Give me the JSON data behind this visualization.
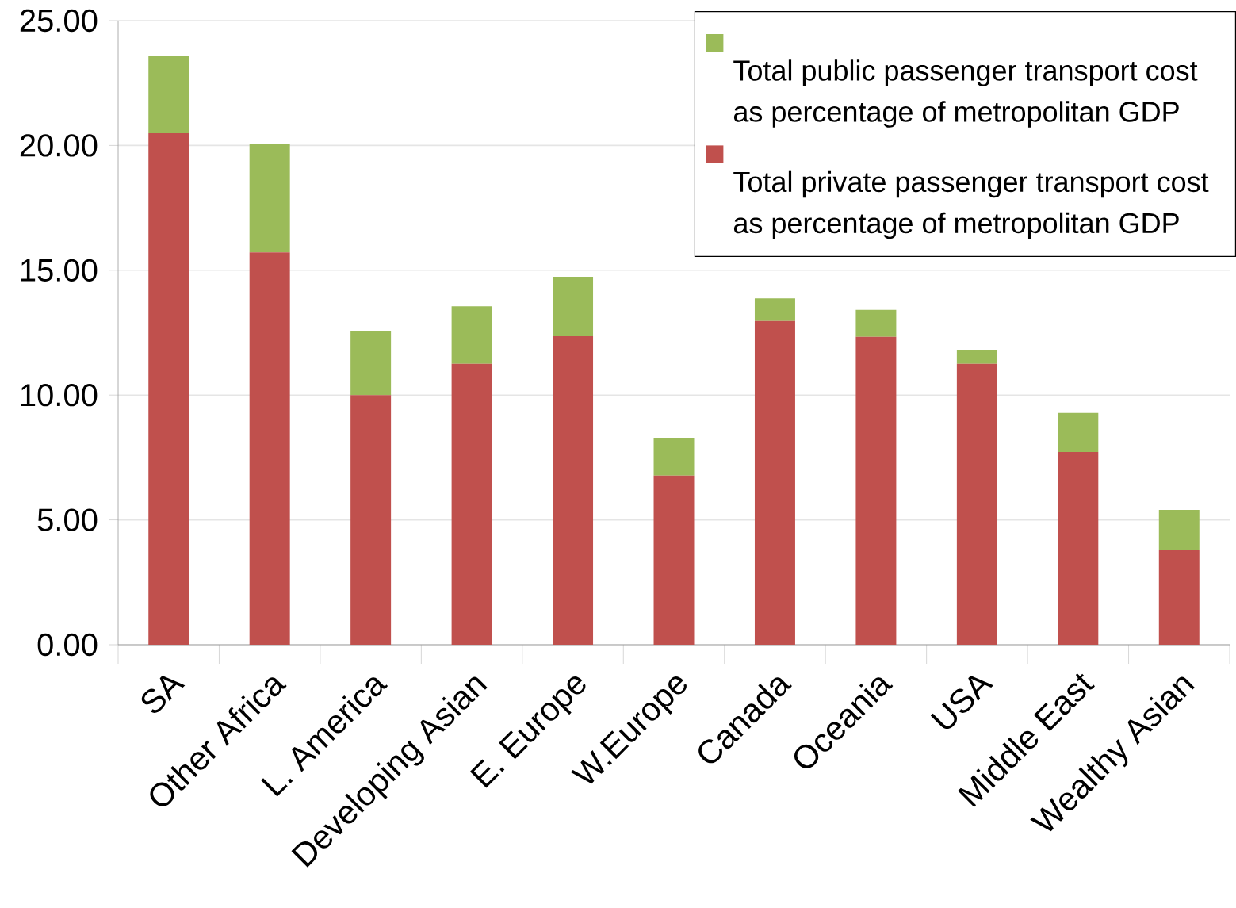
{
  "chart_data": {
    "type": "bar",
    "stacked": true,
    "categories": [
      "SA",
      "Other Africa",
      "L. America",
      "Developing Asian",
      "E. Europe",
      "W.Europe",
      "Canada",
      "Oceania",
      "USA",
      "Middle East",
      "Wealthy Asian"
    ],
    "series": [
      {
        "name": "Total private passenger transport cost as percentage of metropolitan GDP",
        "color": "#c0504d",
        "values": [
          20.49,
          15.72,
          10.0,
          11.25,
          12.36,
          6.77,
          12.97,
          12.33,
          11.25,
          7.72,
          3.78
        ]
      },
      {
        "name": "Total public passenger transport cost as percentage of metropolitan GDP",
        "color": "#9bbb59",
        "values": [
          3.08,
          4.36,
          2.58,
          2.31,
          2.38,
          1.52,
          0.9,
          1.08,
          0.57,
          1.56,
          1.62
        ]
      }
    ],
    "ylim": [
      0,
      25
    ],
    "yticks": [
      {
        "value": 0,
        "label": "0.00"
      },
      {
        "value": 5,
        "label": "5.00"
      },
      {
        "value": 10,
        "label": "10.00"
      },
      {
        "value": 15,
        "label": "15.00"
      },
      {
        "value": 20,
        "label": "20.00"
      },
      {
        "value": 25,
        "label": "25.00"
      }
    ],
    "grid": "y",
    "legend": "top right"
  }
}
